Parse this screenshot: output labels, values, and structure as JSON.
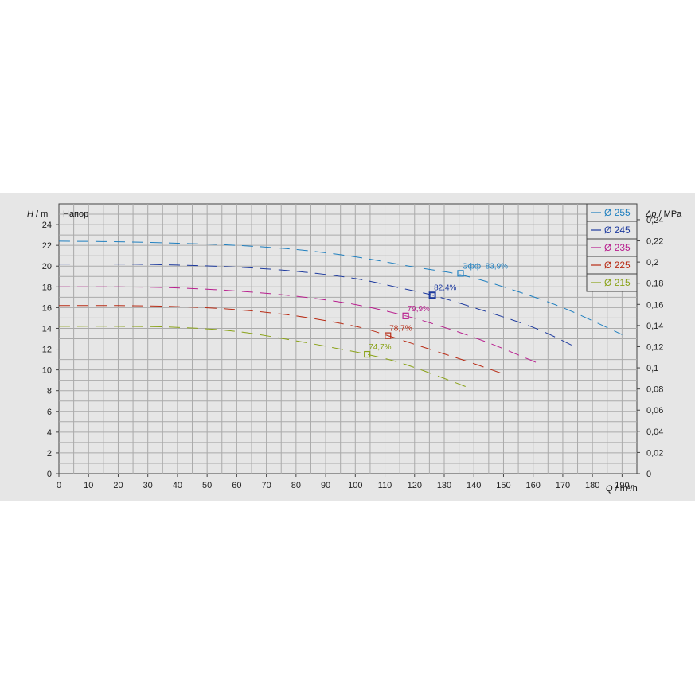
{
  "chart_data": {
    "type": "line",
    "title": "Напор",
    "x_axis": {
      "label_var": "Q",
      "label_unit": " / m³/h",
      "range": [
        0,
        195
      ],
      "ticks": [
        0,
        10,
        20,
        30,
        40,
        50,
        60,
        70,
        80,
        90,
        100,
        110,
        120,
        130,
        140,
        150,
        160,
        170,
        180,
        190
      ]
    },
    "y_axis": {
      "label_var": "H",
      "label_unit": " / m",
      "range": [
        0,
        26
      ],
      "ticks": [
        0,
        2,
        4,
        6,
        8,
        10,
        12,
        14,
        16,
        18,
        20,
        22,
        24
      ]
    },
    "y2_axis": {
      "label_var": "Δp",
      "label_unit": " / MPa",
      "range": [
        0,
        0.255
      ],
      "ticks": [
        "0",
        "0,02",
        "0,04",
        "0,06",
        "0,08",
        "0,1",
        "0,12",
        "0,14",
        "0,16",
        "0,18",
        "0,2",
        "0,22",
        "0,24"
      ],
      "tick_values": [
        0,
        0.02,
        0.04,
        0.06,
        0.08,
        0.1,
        0.12,
        0.14,
        0.16,
        0.18,
        0.2,
        0.22,
        0.24
      ]
    },
    "grid": true,
    "legend_position": "top-right",
    "series": [
      {
        "name": "Ø 255",
        "color": "#1f7fbf",
        "x": [
          0,
          20,
          40,
          60,
          80,
          100,
          120,
          135,
          150,
          170,
          190
        ],
        "y": [
          22.4,
          22.35,
          22.2,
          22.0,
          21.6,
          20.9,
          19.9,
          19.2,
          18.0,
          16.0,
          13.4
        ]
      },
      {
        "name": "Ø 245",
        "color": "#1d3a9e",
        "x": [
          0,
          20,
          40,
          60,
          80,
          100,
          115,
          126,
          140,
          160,
          175
        ],
        "y": [
          20.2,
          20.2,
          20.1,
          19.9,
          19.5,
          18.8,
          17.9,
          17.2,
          16.0,
          14.1,
          12.1
        ]
      },
      {
        "name": "Ø 235",
        "color": "#b81e8e",
        "x": [
          0,
          20,
          40,
          60,
          80,
          100,
          117,
          130,
          145,
          162
        ],
        "y": [
          18.0,
          18.0,
          17.9,
          17.6,
          17.1,
          16.3,
          15.2,
          14.1,
          12.6,
          10.6
        ]
      },
      {
        "name": "Ø 225",
        "color": "#b82b14",
        "x": [
          0,
          20,
          40,
          60,
          80,
          100,
          111,
          125,
          138,
          149
        ],
        "y": [
          16.2,
          16.2,
          16.1,
          15.8,
          15.2,
          14.2,
          13.3,
          12.0,
          10.8,
          9.7
        ]
      },
      {
        "name": "Ø 215",
        "color": "#8aa218",
        "x": [
          0,
          20,
          40,
          60,
          80,
          95,
          104,
          115,
          127,
          139
        ],
        "y": [
          14.2,
          14.2,
          14.1,
          13.7,
          12.8,
          12.0,
          11.5,
          10.7,
          9.5,
          8.2
        ]
      }
    ],
    "efficiency_points": [
      {
        "x": 135.5,
        "y": 19.3,
        "label": "Эфф.  83,9%",
        "color": "#1f7fbf"
      },
      {
        "x": 126.0,
        "y": 17.2,
        "label": "82,4%",
        "color": "#1d3a9e"
      },
      {
        "x": 117.0,
        "y": 15.2,
        "label": "79,9%",
        "color": "#b81e8e"
      },
      {
        "x": 111.0,
        "y": 13.3,
        "label": "78,7%",
        "color": "#b82b14"
      },
      {
        "x": 104.0,
        "y": 11.5,
        "label": "74,7%",
        "color": "#8aa218"
      }
    ]
  }
}
